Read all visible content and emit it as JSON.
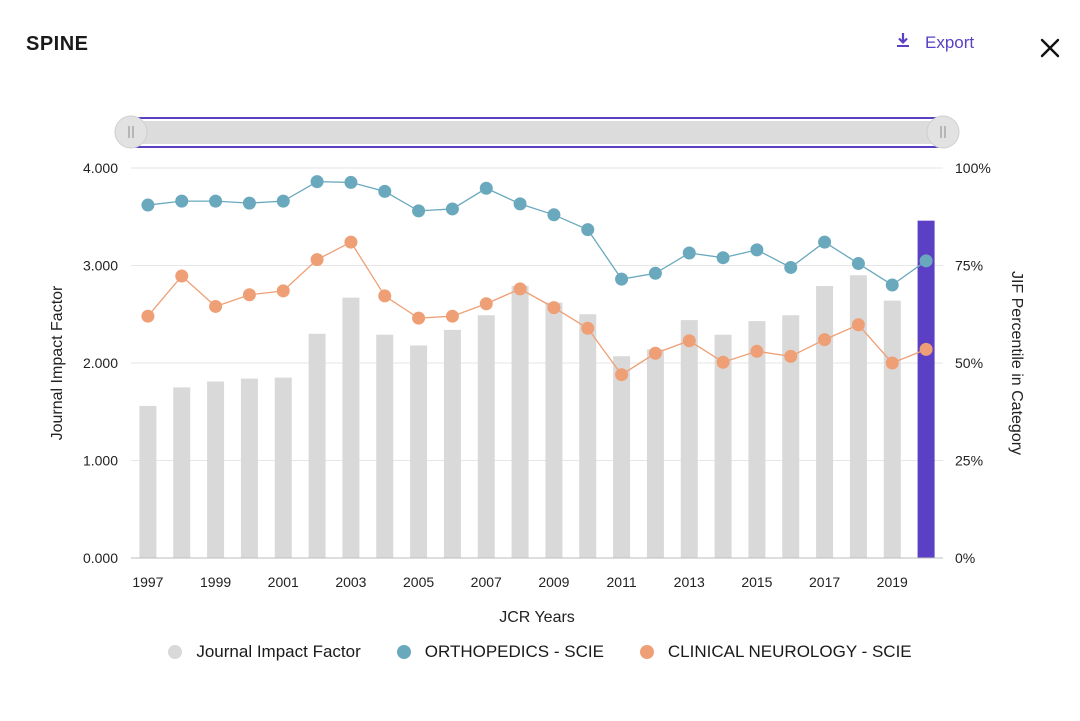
{
  "header": {
    "title": "SPINE",
    "export_label": "Export",
    "export_icon": "download-icon",
    "close_icon": "close-icon"
  },
  "colors": {
    "bar": "#d9d9d9",
    "bar_highlight": "#5b3fc4",
    "orthopedics": "#6aa9bd",
    "neurology": "#ef9f75",
    "accent": "#5b3fc4"
  },
  "chart_data": {
    "type": "bar",
    "title": "",
    "xlabel": "JCR Years",
    "ylabel": "Journal Impact Factor",
    "y2label": "JIF Percentile in Category",
    "ylim": [
      0,
      4
    ],
    "y2lim": [
      0,
      100
    ],
    "yticks": [
      "0.000",
      "1.000",
      "2.000",
      "3.000",
      "4.000"
    ],
    "y2ticks": [
      "0%",
      "25%",
      "50%",
      "75%",
      "100%"
    ],
    "x": [
      1997,
      1998,
      1999,
      2000,
      2001,
      2002,
      2003,
      2004,
      2005,
      2006,
      2007,
      2008,
      2009,
      2010,
      2011,
      2012,
      2013,
      2014,
      2015,
      2016,
      2017,
      2018,
      2019,
      2020
    ],
    "xtick_labels": [
      "1997",
      "1999",
      "2001",
      "2003",
      "2005",
      "2007",
      "2009",
      "2011",
      "2013",
      "2015",
      "2017",
      "2019"
    ],
    "highlight_index": 23,
    "grid": true,
    "legend_position": "bottom",
    "series": [
      {
        "name": "Journal Impact Factor",
        "kind": "bar",
        "axis": "left",
        "values": [
          1.56,
          1.75,
          1.81,
          1.84,
          1.85,
          2.3,
          2.67,
          2.29,
          2.18,
          2.34,
          2.49,
          2.79,
          2.62,
          2.5,
          2.07,
          2.14,
          2.44,
          2.29,
          2.43,
          2.49,
          2.79,
          2.9,
          2.64,
          3.46
        ]
      },
      {
        "name": "ORTHOPEDICS - SCIE",
        "kind": "line",
        "axis": "right",
        "values": [
          90.5,
          91.5,
          91.5,
          91.0,
          91.5,
          96.5,
          96.3,
          94.0,
          89.0,
          89.5,
          94.8,
          90.8,
          88.0,
          84.2,
          71.5,
          73.0,
          78.2,
          77.0,
          79.0,
          74.5,
          81.0,
          75.5,
          70.0,
          76.2
        ]
      },
      {
        "name": "CLINICAL NEUROLOGY - SCIE",
        "kind": "line",
        "axis": "right",
        "values": [
          62.0,
          72.3,
          64.5,
          67.5,
          68.5,
          76.5,
          81.0,
          67.2,
          61.5,
          62.0,
          65.2,
          69.0,
          64.2,
          58.9,
          47.0,
          52.5,
          55.7,
          50.2,
          53.0,
          51.7,
          56.0,
          59.8,
          50.0,
          53.5
        ]
      }
    ]
  }
}
